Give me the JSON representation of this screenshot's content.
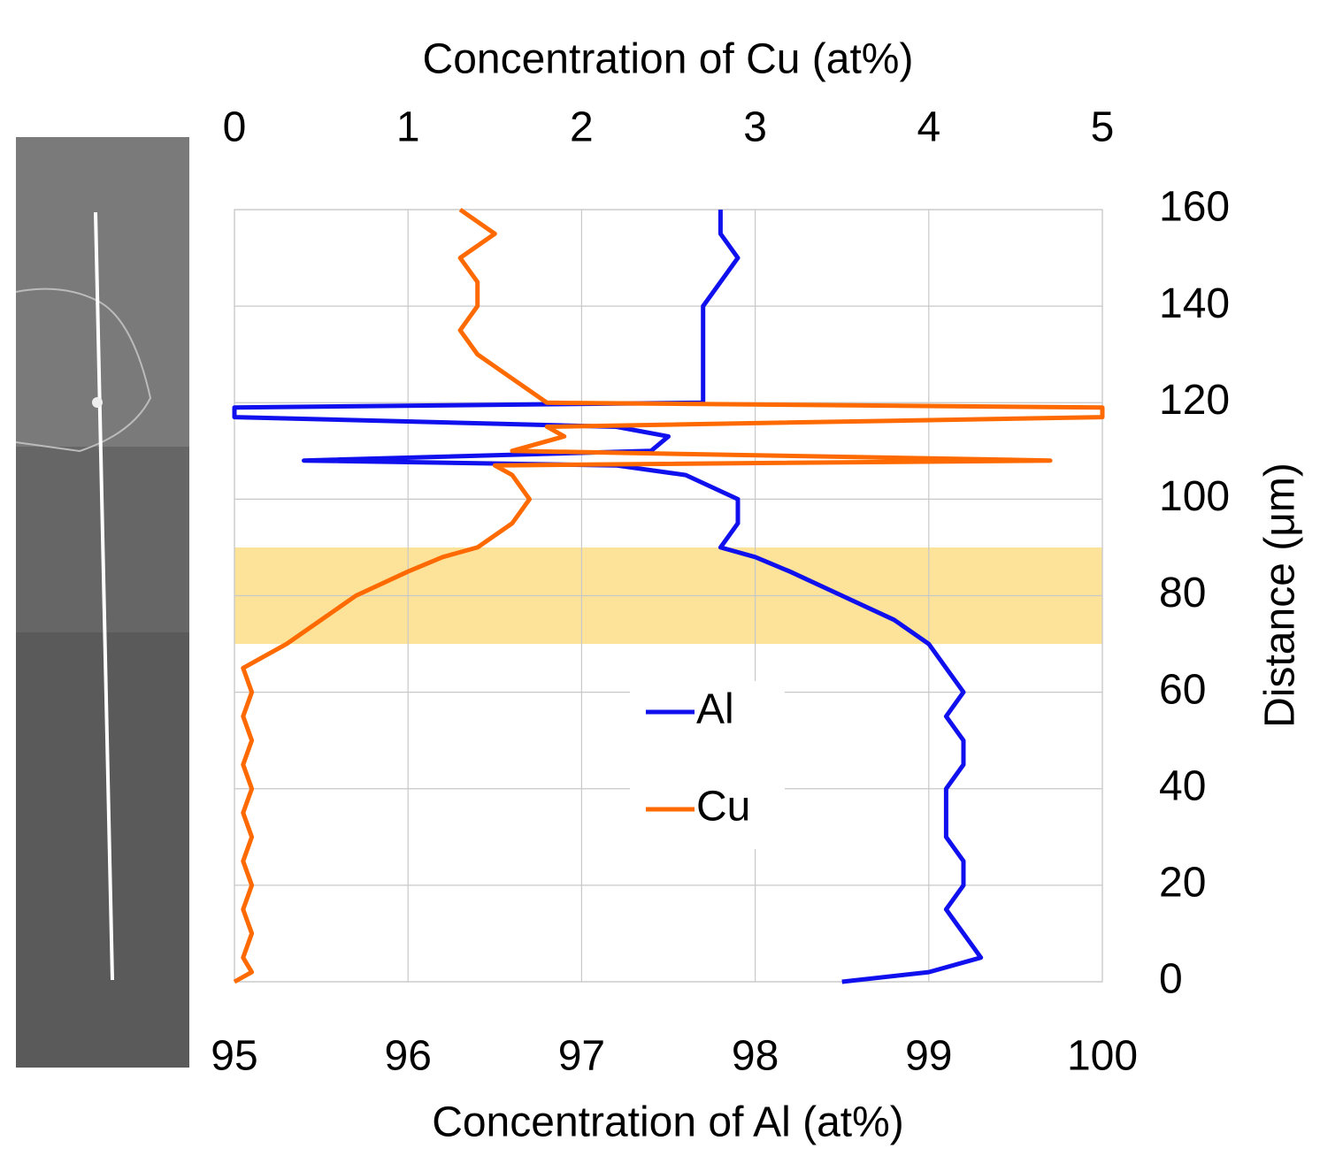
{
  "chart_data": {
    "type": "line",
    "orientation": "vertical",
    "xlabel": "Concentration of Al (at%)",
    "x2label": "Concentration of Cu (at%)",
    "ylabel": "Distance (μm)",
    "xlim": [
      95,
      100
    ],
    "xticks": [
      95,
      96,
      97,
      98,
      99,
      100
    ],
    "x2lim": [
      0,
      5
    ],
    "x2ticks": [
      0,
      1,
      2,
      3,
      4,
      5
    ],
    "ylim": [
      0,
      160
    ],
    "yticks": [
      0,
      20,
      40,
      60,
      80,
      100,
      120,
      140,
      160
    ],
    "grid": true,
    "highlight": {
      "range": [
        70,
        90
      ],
      "color": "#fde39a"
    },
    "distance": [
      0,
      2,
      5,
      10,
      15,
      20,
      25,
      30,
      35,
      40,
      45,
      50,
      55,
      60,
      65,
      70,
      75,
      80,
      85,
      88,
      90,
      95,
      100,
      105,
      107,
      108,
      110,
      113,
      115,
      117,
      119,
      120,
      125,
      130,
      135,
      140,
      145,
      150,
      155,
      160
    ],
    "series": [
      {
        "name": "Al",
        "color": "#1010ee",
        "axis": "x",
        "values": [
          98.5,
          99.0,
          99.3,
          99.2,
          99.1,
          99.2,
          99.2,
          99.1,
          99.1,
          99.1,
          99.2,
          99.2,
          99.1,
          99.2,
          99.1,
          99.0,
          98.8,
          98.5,
          98.2,
          98.0,
          97.8,
          97.9,
          97.9,
          97.6,
          97.2,
          95.4,
          97.4,
          97.5,
          97.2,
          95,
          95,
          97.7,
          97.7,
          97.7,
          97.7,
          97.7,
          97.8,
          97.9,
          97.8,
          97.8
        ]
      },
      {
        "name": "Cu",
        "color": "#ff6a00",
        "axis": "x2",
        "values": [
          0,
          0.1,
          0.05,
          0.1,
          0.05,
          0.1,
          0.05,
          0.1,
          0.05,
          0.1,
          0.05,
          0.1,
          0.05,
          0.1,
          0.05,
          0.3,
          0.5,
          0.7,
          1.0,
          1.2,
          1.4,
          1.6,
          1.7,
          1.6,
          1.5,
          4.7,
          1.6,
          1.9,
          1.8,
          5,
          5,
          1.8,
          1.6,
          1.4,
          1.3,
          1.4,
          1.4,
          1.3,
          1.5,
          1.3
        ]
      }
    ]
  }
}
